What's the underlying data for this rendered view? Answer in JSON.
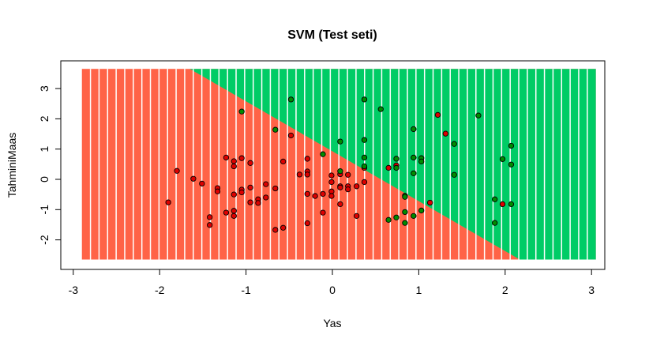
{
  "chart_data": {
    "type": "scatter",
    "title": "SVM (Test seti)",
    "xlabel": "Yas",
    "ylabel": "TahminiMaas",
    "xlim": [
      -3.15,
      3.15
    ],
    "ylim": [
      -2.85,
      3.9
    ],
    "xticks": [
      -3,
      -2,
      -1,
      0,
      1,
      2,
      3
    ],
    "yticks": [
      -2,
      -1,
      0,
      1,
      2,
      3
    ],
    "grid": false,
    "regions": {
      "x_range": [
        -2.9,
        3.05
      ],
      "y_range": [
        -2.65,
        3.65
      ],
      "boundary": [
        [
          -1.65,
          3.65
        ],
        [
          2.17,
          -2.65
        ]
      ],
      "lower_color": "#FF6347",
      "upper_color": "#00CC66"
    },
    "series": [
      {
        "color": "#DD0000",
        "points": [
          [
            -0.48,
            1.45
          ],
          [
            -1.23,
            0.72
          ],
          [
            -1.14,
            0.6
          ],
          [
            -1.05,
            0.7
          ],
          [
            -1.14,
            0.43
          ],
          [
            -0.95,
            0.54
          ],
          [
            -0.57,
            0.59
          ],
          [
            -0.29,
            0.68
          ],
          [
            -1.8,
            0.28
          ],
          [
            -1.61,
            0.02
          ],
          [
            -1.51,
            -0.14
          ],
          [
            -1.33,
            -0.29
          ],
          [
            -1.33,
            -0.4
          ],
          [
            -1.14,
            -0.5
          ],
          [
            -1.05,
            -0.34
          ],
          [
            -1.05,
            -0.43
          ],
          [
            -0.95,
            -0.27
          ],
          [
            -0.77,
            -0.16
          ],
          [
            -0.66,
            -0.3
          ],
          [
            -0.38,
            0.16
          ],
          [
            -0.29,
            0.26
          ],
          [
            -0.29,
            0.16
          ],
          [
            -0.29,
            -0.48
          ],
          [
            -0.2,
            -0.55
          ],
          [
            -0.11,
            -0.48
          ],
          [
            -0.01,
            0.13
          ],
          [
            -0.01,
            -0.09
          ],
          [
            -0.01,
            -0.4
          ],
          [
            -0.01,
            -0.55
          ],
          [
            -1.9,
            -0.76
          ],
          [
            -0.86,
            -0.66
          ],
          [
            -0.86,
            -0.78
          ],
          [
            -0.77,
            -0.6
          ],
          [
            -0.95,
            -0.76
          ],
          [
            -1.23,
            -1.1
          ],
          [
            -1.14,
            -1.04
          ],
          [
            -1.14,
            -1.21
          ],
          [
            -1.42,
            -1.25
          ],
          [
            -1.42,
            -1.51
          ],
          [
            -0.29,
            -1.45
          ],
          [
            -0.66,
            -1.67
          ],
          [
            -0.57,
            -1.6
          ],
          [
            -0.11,
            -1.1
          ],
          [
            1.22,
            2.13
          ],
          [
            1.31,
            1.51
          ],
          [
            0.65,
            0.38
          ],
          [
            0.74,
            0.46
          ],
          [
            0.37,
            0.38
          ],
          [
            0.37,
            -0.09
          ],
          [
            0.09,
            0.17
          ],
          [
            0.18,
            0.15
          ],
          [
            0.09,
            -0.23
          ],
          [
            0.09,
            -0.27
          ],
          [
            0.18,
            -0.23
          ],
          [
            0.18,
            -0.33
          ],
          [
            0.28,
            -0.23
          ],
          [
            0.09,
            -0.82
          ],
          [
            0.28,
            -1.21
          ],
          [
            1.13,
            -0.77
          ],
          [
            1.97,
            -0.82
          ]
        ]
      },
      {
        "color": "#008B00",
        "points": [
          [
            -0.48,
            2.64
          ],
          [
            -1.05,
            2.24
          ],
          [
            -0.66,
            1.64
          ],
          [
            -0.11,
            0.83
          ],
          [
            0.37,
            2.64
          ],
          [
            0.56,
            2.32
          ],
          [
            1.69,
            2.11
          ],
          [
            0.94,
            1.66
          ],
          [
            0.09,
            1.25
          ],
          [
            0.37,
            1.3
          ],
          [
            1.41,
            1.17
          ],
          [
            2.07,
            1.11
          ],
          [
            0.37,
            0.72
          ],
          [
            0.74,
            0.68
          ],
          [
            0.94,
            0.72
          ],
          [
            1.03,
            0.7
          ],
          [
            1.03,
            0.59
          ],
          [
            1.97,
            0.67
          ],
          [
            2.07,
            0.49
          ],
          [
            0.74,
            0.38
          ],
          [
            0.37,
            0.43
          ],
          [
            0.09,
            0.27
          ],
          [
            0.94,
            0.2
          ],
          [
            1.41,
            0.15
          ],
          [
            0.84,
            -0.54
          ],
          [
            0.84,
            -0.58
          ],
          [
            1.88,
            -0.66
          ],
          [
            2.07,
            -0.82
          ],
          [
            1.03,
            -1.03
          ],
          [
            0.84,
            -1.08
          ],
          [
            0.74,
            -1.26
          ],
          [
            0.65,
            -1.34
          ],
          [
            0.94,
            -1.21
          ],
          [
            0.84,
            -1.44
          ],
          [
            1.88,
            -1.44
          ]
        ]
      }
    ]
  }
}
